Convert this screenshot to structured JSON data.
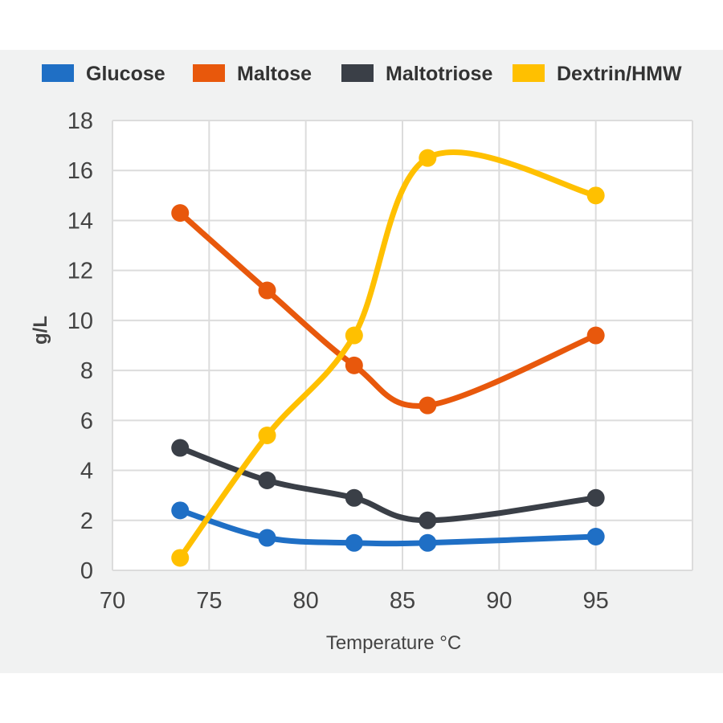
{
  "chart_data": {
    "type": "line",
    "xlabel": "Temperature °C",
    "ylabel": "g/L",
    "xlim": [
      70,
      100
    ],
    "ylim": [
      0,
      18
    ],
    "x_ticks": [
      "70",
      "75",
      "80",
      "85",
      "90",
      "95"
    ],
    "y_ticks": [
      "0",
      "2",
      "4",
      "6",
      "8",
      "10",
      "12",
      "14",
      "16",
      "18"
    ],
    "grid": true,
    "legend_position": "top",
    "x": [
      73.5,
      78,
      82.5,
      86.3,
      95
    ],
    "series": [
      {
        "name": "Glucose",
        "color": "#1f6fc5",
        "values": [
          2.4,
          1.3,
          1.1,
          1.1,
          1.35
        ]
      },
      {
        "name": "Maltose",
        "color": "#e8580c",
        "values": [
          14.3,
          11.2,
          8.2,
          6.6,
          9.4
        ]
      },
      {
        "name": "Maltotriose",
        "color": "#3a3f47",
        "values": [
          4.9,
          3.6,
          2.9,
          2.0,
          2.9
        ]
      },
      {
        "name": "Dextrin/HMW",
        "color": "#ffc000",
        "values": [
          0.5,
          5.4,
          9.4,
          16.5,
          15.0
        ]
      }
    ]
  }
}
